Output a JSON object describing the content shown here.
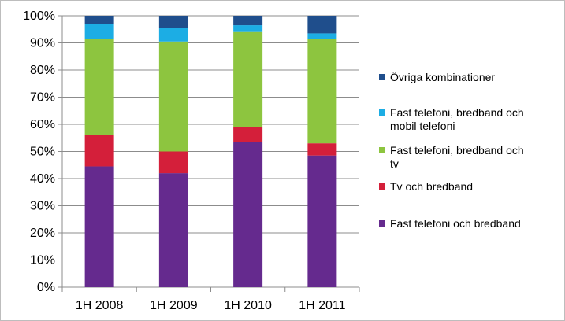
{
  "chart_data": {
    "type": "bar",
    "stacked": true,
    "categories": [
      "1H 2008",
      "1H 2009",
      "1H 2010",
      "1H 2011"
    ],
    "series": [
      {
        "name": "Fast telefoni och bredband",
        "color": "#652A8E",
        "values": [
          44.5,
          42,
          53.5,
          48.5
        ]
      },
      {
        "name": "Tv och bredband",
        "color": "#D41F3A",
        "values": [
          11.5,
          8,
          5.5,
          4.5
        ]
      },
      {
        "name": "Fast telefoni, bredband och tv",
        "color": "#8DC53F",
        "values": [
          35.5,
          40.5,
          35,
          38.5
        ]
      },
      {
        "name": "Fast telefoni, bredband och mobil telefoni",
        "color": "#1CADE4",
        "values": [
          5.5,
          5,
          2.5,
          2
        ]
      },
      {
        "name": "Övriga kombinationer",
        "color": "#1F4E8C",
        "values": [
          3,
          4.5,
          3.5,
          6.5
        ]
      }
    ],
    "ylim": [
      0,
      100
    ],
    "yticks": [
      "0%",
      "10%",
      "20%",
      "30%",
      "40%",
      "50%",
      "60%",
      "70%",
      "80%",
      "90%",
      "100%"
    ],
    "legend_position": "right",
    "legend_order": [
      "Övriga kombinationer",
      "Fast telefoni, bredband och mobil telefoni",
      "Fast telefoni, bredband och tv",
      "Tv och bredband",
      "Fast telefoni och bredband"
    ],
    "legend_lines": {
      "Övriga kombinationer": [
        "Övriga kombinationer"
      ],
      "Fast telefoni, bredband och mobil telefoni": [
        "Fast telefoni, bredband och",
        "mobil telefoni"
      ],
      "Fast telefoni, bredband och tv": [
        "Fast telefoni, bredband och",
        "tv"
      ],
      "Tv och bredband": [
        "Tv och bredband"
      ],
      "Fast telefoni och bredband": [
        "Fast telefoni och bredband"
      ]
    },
    "grid": true
  }
}
